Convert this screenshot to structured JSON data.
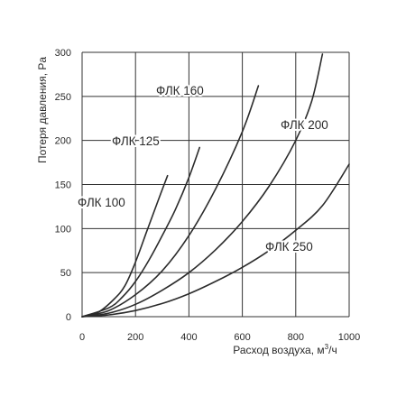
{
  "chart_data": {
    "type": "line",
    "title": "",
    "xlabel": "Расход воздуха, м³/ч",
    "xlabel_text": "Расход воздуха, м",
    "xlabel_sup": "3",
    "xlabel_tail": "/ч",
    "ylabel": "Потеря давления, Pa",
    "xlim": [
      0,
      1000
    ],
    "ylim": [
      0,
      300
    ],
    "x_ticks": [
      0,
      200,
      400,
      600,
      800,
      1000
    ],
    "y_ticks": [
      0,
      50,
      100,
      150,
      200,
      250,
      300
    ],
    "x_grid_step": 200,
    "y_grid_step": 50,
    "grid": true,
    "legend": "inline-labels",
    "series": [
      {
        "name": "ФЛК 100",
        "x": [
          0,
          60,
          120,
          160,
          200,
          240,
          280,
          320
        ],
        "y": [
          0,
          5,
          20,
          35,
          62,
          95,
          128,
          160
        ]
      },
      {
        "name": "ФЛК 125",
        "x": [
          0,
          100,
          150,
          200,
          250,
          300,
          350,
          400,
          440
        ],
        "y": [
          0,
          10,
          22,
          40,
          64,
          92,
          122,
          158,
          192
        ]
      },
      {
        "name": "ФЛК 160",
        "x": [
          0,
          100,
          200,
          300,
          400,
          500,
          600,
          660
        ],
        "y": [
          0,
          7,
          25,
          52,
          92,
          145,
          210,
          262
        ]
      },
      {
        "name": "ФЛК 200",
        "x": [
          0,
          100,
          200,
          300,
          400,
          500,
          600,
          700,
          800,
          860,
          900
        ],
        "y": [
          0,
          4,
          14,
          30,
          50,
          76,
          108,
          148,
          200,
          245,
          298
        ]
      },
      {
        "name": "ФЛК 250",
        "x": [
          0,
          100,
          200,
          300,
          400,
          500,
          600,
          700,
          800,
          900,
          1000
        ],
        "y": [
          0,
          2,
          7,
          15,
          26,
          40,
          56,
          75,
          98,
          126,
          173
        ]
      }
    ]
  }
}
